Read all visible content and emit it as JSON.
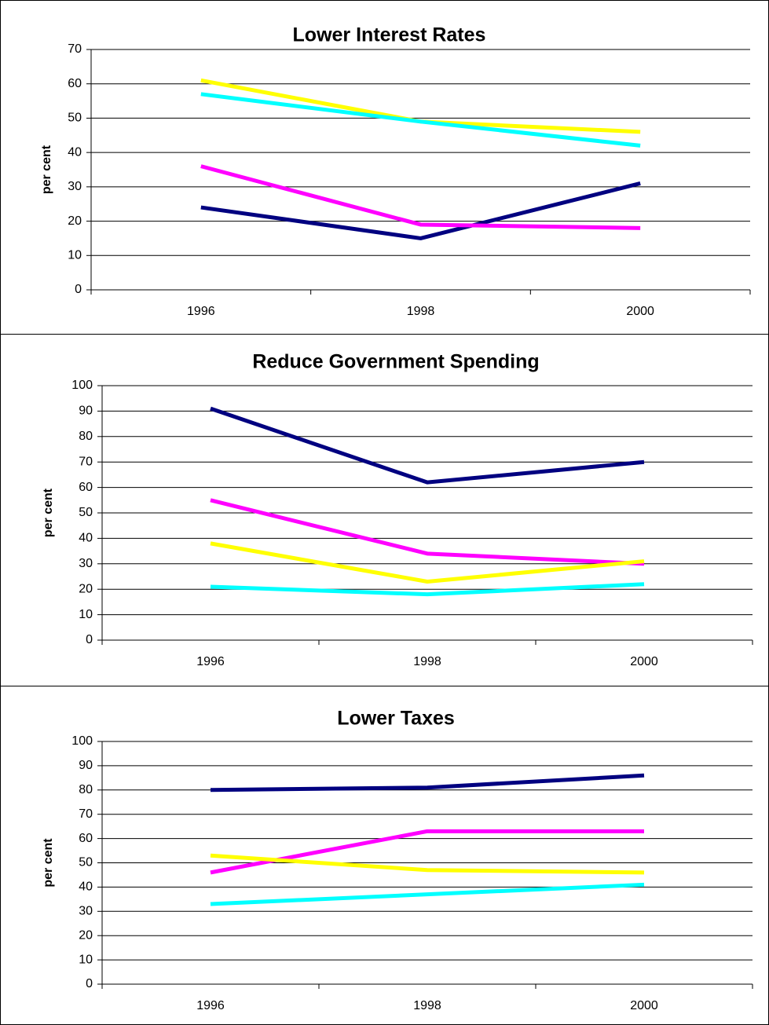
{
  "chart_data": [
    {
      "type": "line",
      "title": "Lower Interest Rates",
      "y_label": "per cent",
      "categories": [
        "1996",
        "1998",
        "2000"
      ],
      "series": [
        {
          "color": "#000080",
          "values": [
            24,
            15,
            31
          ]
        },
        {
          "color": "#ff00ff",
          "values": [
            36,
            19,
            18
          ]
        },
        {
          "color": "#ffff00",
          "values": [
            61,
            49,
            46
          ]
        },
        {
          "color": "#00ffff",
          "values": [
            57,
            49,
            42
          ]
        }
      ],
      "ylim": [
        0,
        70
      ],
      "yticks": [
        0,
        10,
        20,
        30,
        40,
        50,
        60,
        70
      ],
      "grid": true
    },
    {
      "type": "line",
      "title": "Reduce Government Spending",
      "y_label": "per cent",
      "categories": [
        "1996",
        "1998",
        "2000"
      ],
      "series": [
        {
          "color": "#000080",
          "values": [
            91,
            62,
            70
          ]
        },
        {
          "color": "#ff00ff",
          "values": [
            55,
            34,
            30
          ]
        },
        {
          "color": "#ffff00",
          "values": [
            38,
            23,
            31
          ]
        },
        {
          "color": "#00ffff",
          "values": [
            21,
            18,
            22
          ]
        }
      ],
      "ylim": [
        0,
        100
      ],
      "yticks": [
        0,
        10,
        20,
        30,
        40,
        50,
        60,
        70,
        80,
        90,
        100
      ],
      "grid": true
    },
    {
      "type": "line",
      "title": "Lower Taxes",
      "y_label": "per cent",
      "categories": [
        "1996",
        "1998",
        "2000"
      ],
      "series": [
        {
          "color": "#000080",
          "values": [
            80,
            81,
            86
          ]
        },
        {
          "color": "#ff00ff",
          "values": [
            46,
            63,
            63
          ]
        },
        {
          "color": "#ffff00",
          "values": [
            53,
            47,
            46
          ]
        },
        {
          "color": "#00ffff",
          "values": [
            33,
            37,
            41
          ]
        }
      ],
      "ylim": [
        0,
        100
      ],
      "yticks": [
        0,
        10,
        20,
        30,
        40,
        50,
        60,
        70,
        80,
        90,
        100
      ],
      "grid": true
    }
  ]
}
